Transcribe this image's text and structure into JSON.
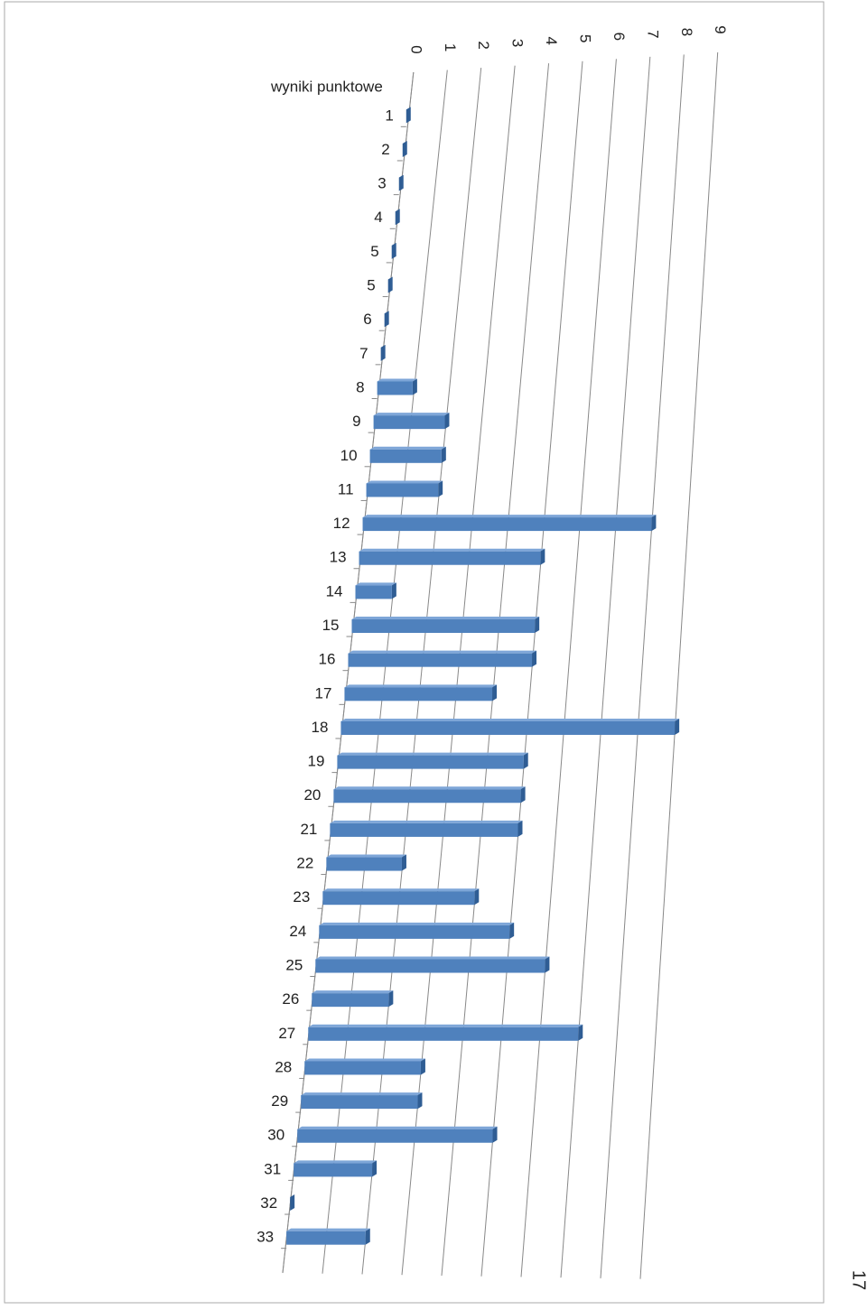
{
  "chart_data": {
    "type": "bar3d",
    "y_axis_label": "wyniki punktowe",
    "categories": [
      "1",
      "2",
      "3",
      "4",
      "5",
      "5",
      "6",
      "7",
      "8",
      "9",
      "10",
      "11",
      "12",
      "13",
      "14",
      "15",
      "16",
      "17",
      "18",
      "19",
      "20",
      "21",
      "22",
      "23",
      "24",
      "25",
      "26",
      "27",
      "28",
      "29",
      "30",
      "31",
      "32",
      "33"
    ],
    "values": [
      0,
      0,
      0,
      0,
      0,
      0,
      0,
      0,
      1,
      2,
      2,
      2,
      8,
      5,
      1,
      5,
      5,
      4,
      9,
      5,
      5,
      5,
      2,
      4,
      5,
      6,
      2,
      7,
      3,
      3,
      5,
      2,
      0,
      2
    ],
    "color": "#4f81bd",
    "xlim": [
      0,
      9
    ],
    "xticks": [
      0,
      1,
      2,
      3,
      4,
      5,
      6,
      7,
      8,
      9
    ],
    "grid": true
  },
  "page_number": "17"
}
